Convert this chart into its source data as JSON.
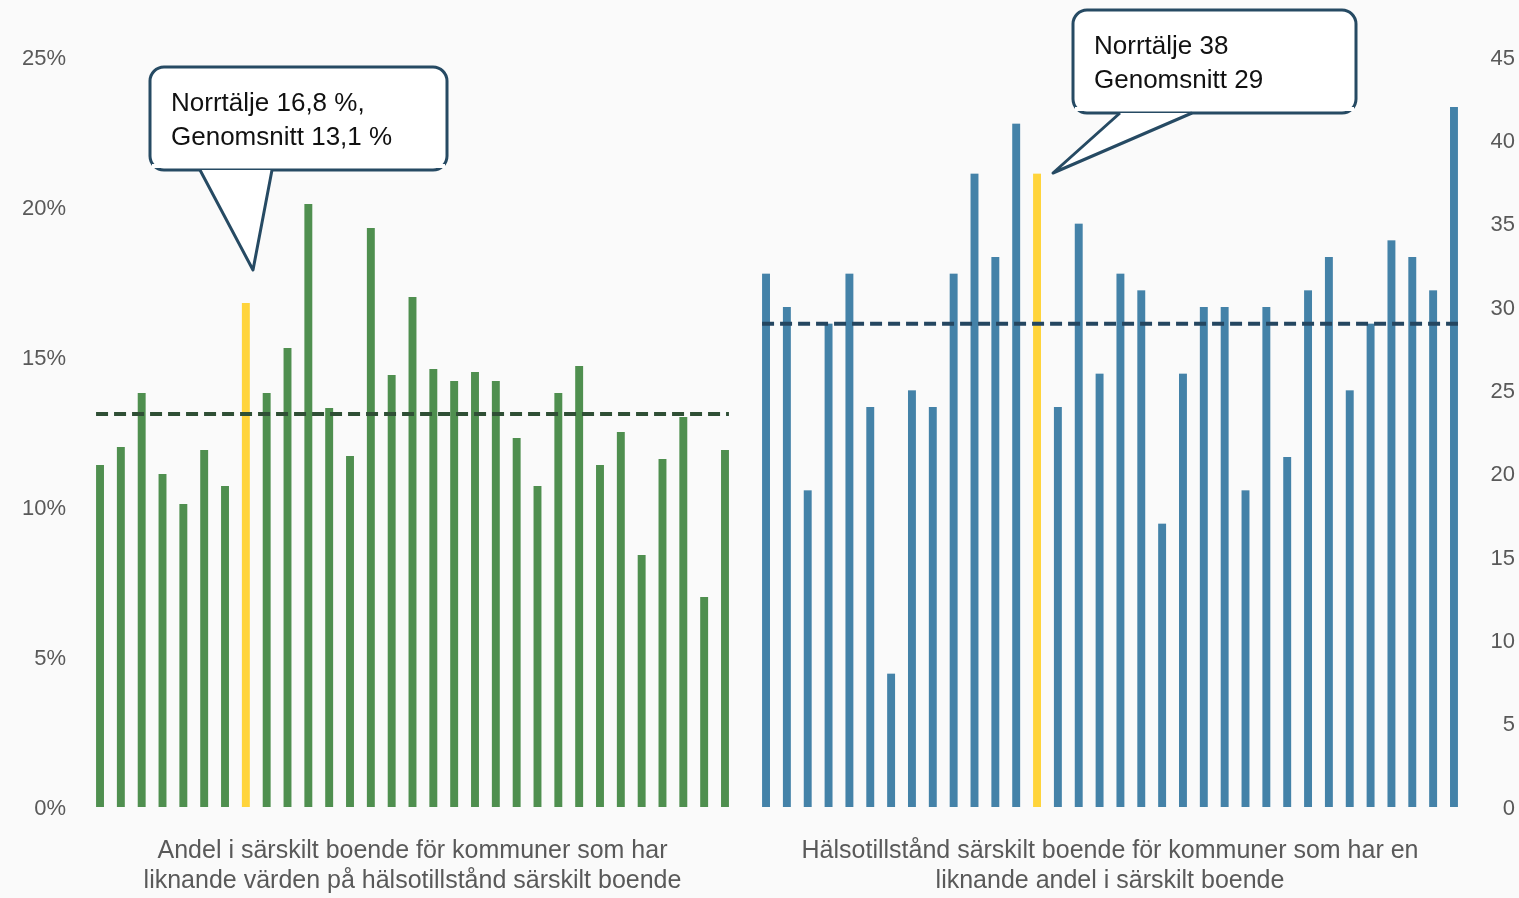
{
  "chart_data": [
    {
      "type": "bar",
      "xlabel": "Andel i särskilt boende för kommuner som har\nliknande värden på hälsotillstånd särskilt boende",
      "categories": [
        null,
        null,
        null,
        null,
        null,
        null,
        null,
        null,
        null,
        null,
        null,
        null,
        null,
        null,
        null,
        null,
        null,
        null,
        null,
        null,
        null,
        null,
        null,
        null,
        null,
        null,
        null,
        null,
        null,
        null,
        null
      ],
      "values": [
        11.4,
        12.0,
        13.8,
        11.1,
        10.1,
        11.9,
        10.7,
        16.8,
        13.8,
        15.3,
        20.1,
        13.3,
        11.7,
        19.3,
        14.4,
        17.0,
        14.6,
        14.2,
        14.5,
        14.2,
        12.3,
        10.7,
        13.8,
        14.7,
        11.4,
        12.5,
        8.4,
        11.6,
        13.0,
        7.0,
        11.9
      ],
      "colors": [
        "#4f8f4f",
        "#4f8f4f",
        "#4f8f4f",
        "#4f8f4f",
        "#4f8f4f",
        "#4f8f4f",
        "#4f8f4f",
        "#ffd43b",
        "#4f8f4f",
        "#4f8f4f",
        "#4f8f4f",
        "#4f8f4f",
        "#4f8f4f",
        "#4f8f4f",
        "#4f8f4f",
        "#4f8f4f",
        "#4f8f4f",
        "#4f8f4f",
        "#4f8f4f",
        "#4f8f4f",
        "#4f8f4f",
        "#4f8f4f",
        "#4f8f4f",
        "#4f8f4f",
        "#4f8f4f",
        "#4f8f4f",
        "#4f8f4f",
        "#4f8f4f",
        "#4f8f4f",
        "#4f8f4f",
        "#4f8f4f"
      ],
      "ylim": [
        0,
        25
      ],
      "yticks": [
        {
          "value": 0,
          "label": "0%"
        },
        {
          "value": 5,
          "label": "5%"
        },
        {
          "value": 10,
          "label": "10%"
        },
        {
          "value": 15,
          "label": "15%"
        },
        {
          "value": 20,
          "label": "20%"
        },
        {
          "value": 25,
          "label": "25%"
        }
      ],
      "ref_lines": [
        {
          "axis": "y",
          "value": 13.1,
          "color": "#2f4f35",
          "line_style": "dashed"
        }
      ],
      "annotations": [
        "Norrtälje 16,8 %,\nGenomsnitt 13,1 %"
      ],
      "tick_labels": "y",
      "grid": false
    },
    {
      "type": "bar",
      "xlabel": "Hälsotillstånd särskilt boende för kommuner som har en\nliknande andel i särskilt boende",
      "categories": [
        null,
        null,
        null,
        null,
        null,
        null,
        null,
        null,
        null,
        null,
        null,
        null,
        null,
        null,
        null,
        null,
        null,
        null,
        null,
        null,
        null,
        null,
        null,
        null,
        null,
        null,
        null,
        null,
        null,
        null,
        null,
        null,
        null,
        null
      ],
      "values": [
        32,
        30,
        19,
        29,
        32,
        24,
        8,
        25,
        24,
        32,
        38,
        33,
        41,
        38,
        24,
        35,
        26,
        32,
        31,
        17,
        26,
        30,
        30,
        19,
        30,
        21,
        31,
        33,
        25,
        29,
        34,
        33,
        31,
        42
      ],
      "colors": [
        "#4482a8",
        "#4482a8",
        "#4482a8",
        "#4482a8",
        "#4482a8",
        "#4482a8",
        "#4482a8",
        "#4482a8",
        "#4482a8",
        "#4482a8",
        "#4482a8",
        "#4482a8",
        "#4482a8",
        "#ffd43b",
        "#4482a8",
        "#4482a8",
        "#4482a8",
        "#4482a8",
        "#4482a8",
        "#4482a8",
        "#4482a8",
        "#4482a8",
        "#4482a8",
        "#4482a8",
        "#4482a8",
        "#4482a8",
        "#4482a8",
        "#4482a8",
        "#4482a8",
        "#4482a8",
        "#4482a8",
        "#4482a8",
        "#4482a8",
        "#4482a8"
      ],
      "ylim": [
        0,
        45
      ],
      "yticks": [
        0,
        5,
        10,
        15,
        20,
        25,
        30,
        35,
        40,
        45
      ],
      "ref_lines": [
        {
          "axis": "y",
          "value": 29,
          "color": "#244660",
          "line_style": "dashed"
        }
      ],
      "annotations": [
        "Norrtälje 38\nGenomsnitt 29"
      ],
      "tick_labels": "y",
      "grid": false
    }
  ]
}
